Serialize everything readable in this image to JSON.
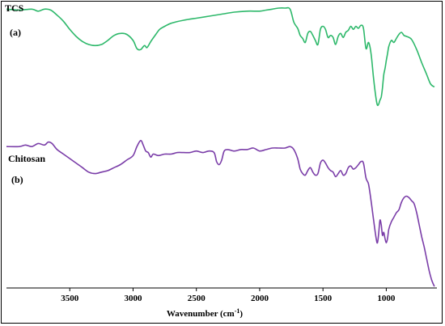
{
  "chart_data": {
    "type": "line",
    "title": "",
    "xlabel_main": "Wavenumber (cm",
    "xlabel_sup": "-1",
    "xlabel_tail": ")",
    "ylabel": "",
    "xlim": [
      4000,
      600
    ],
    "x_reversed": true,
    "x_ticks": [
      3500,
      3000,
      2500,
      2000,
      1500,
      1000
    ],
    "grid": false,
    "legend": "none",
    "series": [
      {
        "name": "TCS",
        "tag": "(a)",
        "color": "#2db86a",
        "points": [
          [
            4000,
            0.99
          ],
          [
            3900,
            0.98
          ],
          [
            3800,
            0.99
          ],
          [
            3750,
            0.97
          ],
          [
            3700,
            0.99
          ],
          [
            3650,
            0.98
          ],
          [
            3600,
            0.93
          ],
          [
            3550,
            0.87
          ],
          [
            3500,
            0.79
          ],
          [
            3450,
            0.72
          ],
          [
            3400,
            0.67
          ],
          [
            3350,
            0.64
          ],
          [
            3300,
            0.63
          ],
          [
            3250,
            0.64
          ],
          [
            3200,
            0.68
          ],
          [
            3150,
            0.73
          ],
          [
            3100,
            0.75
          ],
          [
            3050,
            0.74
          ],
          [
            3000,
            0.68
          ],
          [
            2970,
            0.6
          ],
          [
            2940,
            0.59
          ],
          [
            2910,
            0.63
          ],
          [
            2890,
            0.61
          ],
          [
            2860,
            0.67
          ],
          [
            2820,
            0.74
          ],
          [
            2790,
            0.79
          ],
          [
            2750,
            0.82
          ],
          [
            2700,
            0.85
          ],
          [
            2600,
            0.88
          ],
          [
            2500,
            0.9
          ],
          [
            2400,
            0.92
          ],
          [
            2300,
            0.94
          ],
          [
            2200,
            0.96
          ],
          [
            2100,
            0.97
          ],
          [
            2000,
            0.97
          ],
          [
            1950,
            0.98
          ],
          [
            1900,
            0.99
          ],
          [
            1850,
            1.0
          ],
          [
            1800,
            1.0
          ],
          [
            1760,
            0.99
          ],
          [
            1730,
            0.86
          ],
          [
            1700,
            0.8
          ],
          [
            1680,
            0.73
          ],
          [
            1660,
            0.7
          ],
          [
            1640,
            0.66
          ],
          [
            1620,
            0.75
          ],
          [
            1600,
            0.77
          ],
          [
            1580,
            0.73
          ],
          [
            1560,
            0.68
          ],
          [
            1540,
            0.64
          ],
          [
            1520,
            0.79
          ],
          [
            1500,
            0.82
          ],
          [
            1480,
            0.79
          ],
          [
            1460,
            0.71
          ],
          [
            1440,
            0.73
          ],
          [
            1420,
            0.71
          ],
          [
            1400,
            0.64
          ],
          [
            1380,
            0.72
          ],
          [
            1360,
            0.75
          ],
          [
            1340,
            0.71
          ],
          [
            1320,
            0.76
          ],
          [
            1300,
            0.78
          ],
          [
            1280,
            0.82
          ],
          [
            1260,
            0.79
          ],
          [
            1240,
            0.82
          ],
          [
            1220,
            0.8
          ],
          [
            1200,
            0.83
          ],
          [
            1180,
            0.8
          ],
          [
            1160,
            0.6
          ],
          [
            1140,
            0.66
          ],
          [
            1120,
            0.55
          ],
          [
            1100,
            0.3
          ],
          [
            1080,
            0.1
          ],
          [
            1070,
            0.04
          ],
          [
            1060,
            0.05
          ],
          [
            1050,
            0.09
          ],
          [
            1040,
            0.12
          ],
          [
            1030,
            0.21
          ],
          [
            1020,
            0.34
          ],
          [
            1010,
            0.4
          ],
          [
            1000,
            0.48
          ],
          [
            990,
            0.55
          ],
          [
            980,
            0.62
          ],
          [
            960,
            0.68
          ],
          [
            940,
            0.66
          ],
          [
            920,
            0.7
          ],
          [
            900,
            0.74
          ],
          [
            880,
            0.76
          ],
          [
            860,
            0.73
          ],
          [
            840,
            0.72
          ],
          [
            800,
            0.69
          ],
          [
            760,
            0.59
          ],
          [
            720,
            0.46
          ],
          [
            680,
            0.34
          ],
          [
            650,
            0.25
          ],
          [
            620,
            0.22
          ]
        ]
      },
      {
        "name": "Chitosan",
        "tag": "(b)",
        "color": "#7a3da8",
        "points": [
          [
            4000,
            0.94
          ],
          [
            3900,
            0.94
          ],
          [
            3850,
            0.95
          ],
          [
            3800,
            0.94
          ],
          [
            3750,
            0.96
          ],
          [
            3700,
            0.95
          ],
          [
            3670,
            0.97
          ],
          [
            3640,
            0.96
          ],
          [
            3600,
            0.92
          ],
          [
            3550,
            0.89
          ],
          [
            3500,
            0.86
          ],
          [
            3450,
            0.83
          ],
          [
            3400,
            0.8
          ],
          [
            3350,
            0.77
          ],
          [
            3300,
            0.76
          ],
          [
            3250,
            0.77
          ],
          [
            3200,
            0.78
          ],
          [
            3150,
            0.8
          ],
          [
            3100,
            0.82
          ],
          [
            3050,
            0.85
          ],
          [
            3000,
            0.88
          ],
          [
            2970,
            0.94
          ],
          [
            2940,
            0.98
          ],
          [
            2920,
            0.95
          ],
          [
            2900,
            0.91
          ],
          [
            2880,
            0.9
          ],
          [
            2860,
            0.87
          ],
          [
            2840,
            0.89
          ],
          [
            2800,
            0.88
          ],
          [
            2750,
            0.89
          ],
          [
            2700,
            0.89
          ],
          [
            2650,
            0.9
          ],
          [
            2600,
            0.9
          ],
          [
            2550,
            0.9
          ],
          [
            2500,
            0.91
          ],
          [
            2450,
            0.9
          ],
          [
            2400,
            0.91
          ],
          [
            2360,
            0.9
          ],
          [
            2340,
            0.84
          ],
          [
            2320,
            0.82
          ],
          [
            2300,
            0.85
          ],
          [
            2280,
            0.91
          ],
          [
            2250,
            0.92
          ],
          [
            2200,
            0.91
          ],
          [
            2150,
            0.92
          ],
          [
            2100,
            0.92
          ],
          [
            2050,
            0.93
          ],
          [
            2000,
            0.91
          ],
          [
            1950,
            0.92
          ],
          [
            1900,
            0.93
          ],
          [
            1850,
            0.93
          ],
          [
            1800,
            0.93
          ],
          [
            1760,
            0.94
          ],
          [
            1730,
            0.92
          ],
          [
            1700,
            0.86
          ],
          [
            1680,
            0.79
          ],
          [
            1660,
            0.76
          ],
          [
            1640,
            0.75
          ],
          [
            1620,
            0.78
          ],
          [
            1600,
            0.8
          ],
          [
            1580,
            0.77
          ],
          [
            1560,
            0.75
          ],
          [
            1540,
            0.76
          ],
          [
            1520,
            0.83
          ],
          [
            1500,
            0.85
          ],
          [
            1480,
            0.83
          ],
          [
            1460,
            0.8
          ],
          [
            1440,
            0.78
          ],
          [
            1420,
            0.77
          ],
          [
            1400,
            0.74
          ],
          [
            1380,
            0.76
          ],
          [
            1360,
            0.78
          ],
          [
            1340,
            0.75
          ],
          [
            1320,
            0.76
          ],
          [
            1300,
            0.8
          ],
          [
            1280,
            0.81
          ],
          [
            1260,
            0.79
          ],
          [
            1240,
            0.8
          ],
          [
            1220,
            0.82
          ],
          [
            1200,
            0.84
          ],
          [
            1180,
            0.83
          ],
          [
            1160,
            0.73
          ],
          [
            1140,
            0.69
          ],
          [
            1120,
            0.58
          ],
          [
            1100,
            0.45
          ],
          [
            1080,
            0.33
          ],
          [
            1070,
            0.3
          ],
          [
            1060,
            0.36
          ],
          [
            1050,
            0.45
          ],
          [
            1040,
            0.42
          ],
          [
            1030,
            0.35
          ],
          [
            1020,
            0.37
          ],
          [
            1010,
            0.33
          ],
          [
            1000,
            0.3
          ],
          [
            990,
            0.33
          ],
          [
            980,
            0.39
          ],
          [
            960,
            0.44
          ],
          [
            940,
            0.47
          ],
          [
            920,
            0.5
          ],
          [
            900,
            0.52
          ],
          [
            880,
            0.57
          ],
          [
            860,
            0.6
          ],
          [
            840,
            0.61
          ],
          [
            820,
            0.6
          ],
          [
            800,
            0.58
          ],
          [
            780,
            0.56
          ],
          [
            760,
            0.5
          ],
          [
            740,
            0.42
          ],
          [
            720,
            0.34
          ],
          [
            700,
            0.27
          ],
          [
            680,
            0.19
          ],
          [
            660,
            0.11
          ],
          [
            640,
            0.05
          ],
          [
            620,
            0.01
          ]
        ]
      }
    ]
  }
}
